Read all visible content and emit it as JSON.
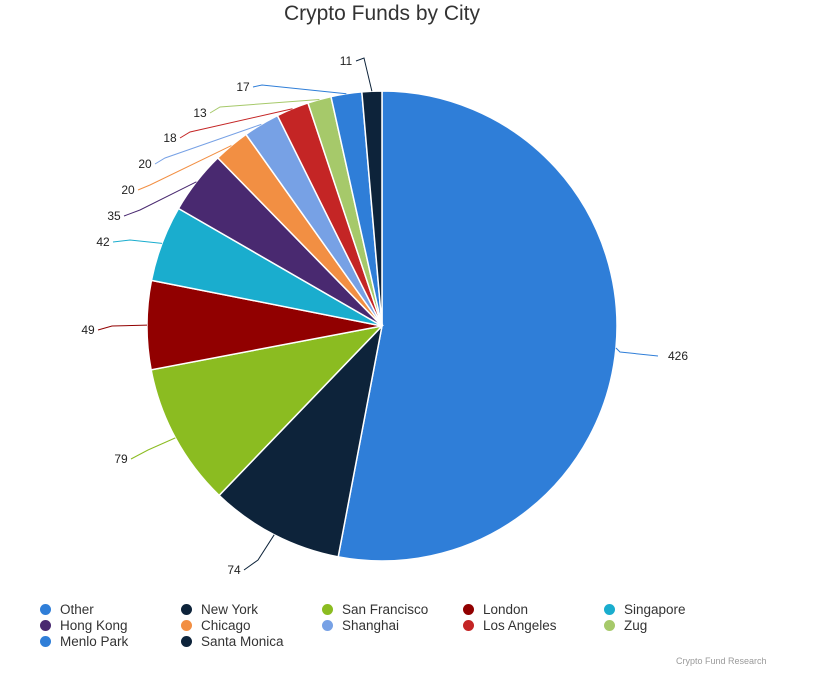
{
  "chart_data": {
    "type": "pie",
    "title": "Crypto Funds by City",
    "categories": [
      "Other",
      "New York",
      "San Francisco",
      "London",
      "Singapore",
      "Hong Kong",
      "Chicago",
      "Shanghai",
      "Los Angeles",
      "Zug",
      "Menlo Park",
      "Santa Monica"
    ],
    "values": [
      426,
      74,
      79,
      49,
      42,
      35,
      20,
      20,
      18,
      13,
      17,
      11
    ],
    "colors": [
      "#2f7ed8",
      "#0d233a",
      "#8bbc21",
      "#910000",
      "#1aadce",
      "#492970",
      "#f28f43",
      "#77a1e5",
      "#c42525",
      "#a6c96a",
      "#2f7ed8",
      "#0d233a"
    ],
    "legend_position": "bottom",
    "credit": "Crypto Fund Research"
  }
}
